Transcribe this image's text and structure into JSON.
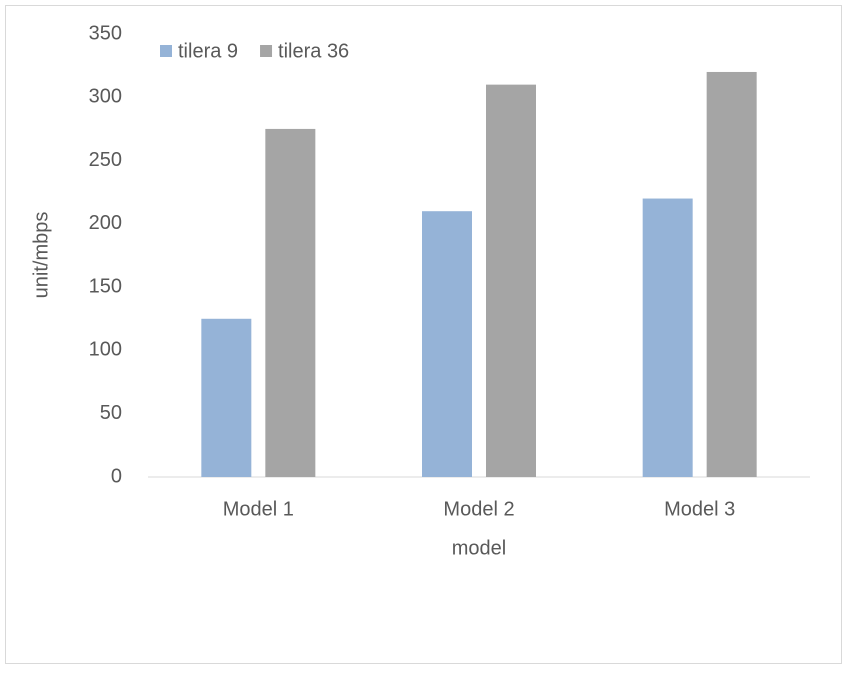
{
  "chart_data": {
    "type": "bar",
    "x_label": "model",
    "y_label": "unit/mbps",
    "categories": [
      "Model 1",
      "Model 2",
      "Model 3"
    ],
    "series": [
      {
        "name": "tilera 9",
        "color": "#95b3d7",
        "values": [
          125,
          210,
          220
        ]
      },
      {
        "name": "tilera 36",
        "color": "#a5a5a5",
        "values": [
          275,
          310,
          320
        ]
      }
    ],
    "ylim": [
      0,
      350
    ],
    "yticks": [
      0,
      50,
      100,
      150,
      200,
      250,
      300,
      350
    ],
    "grid": false,
    "legend": "top-left"
  }
}
